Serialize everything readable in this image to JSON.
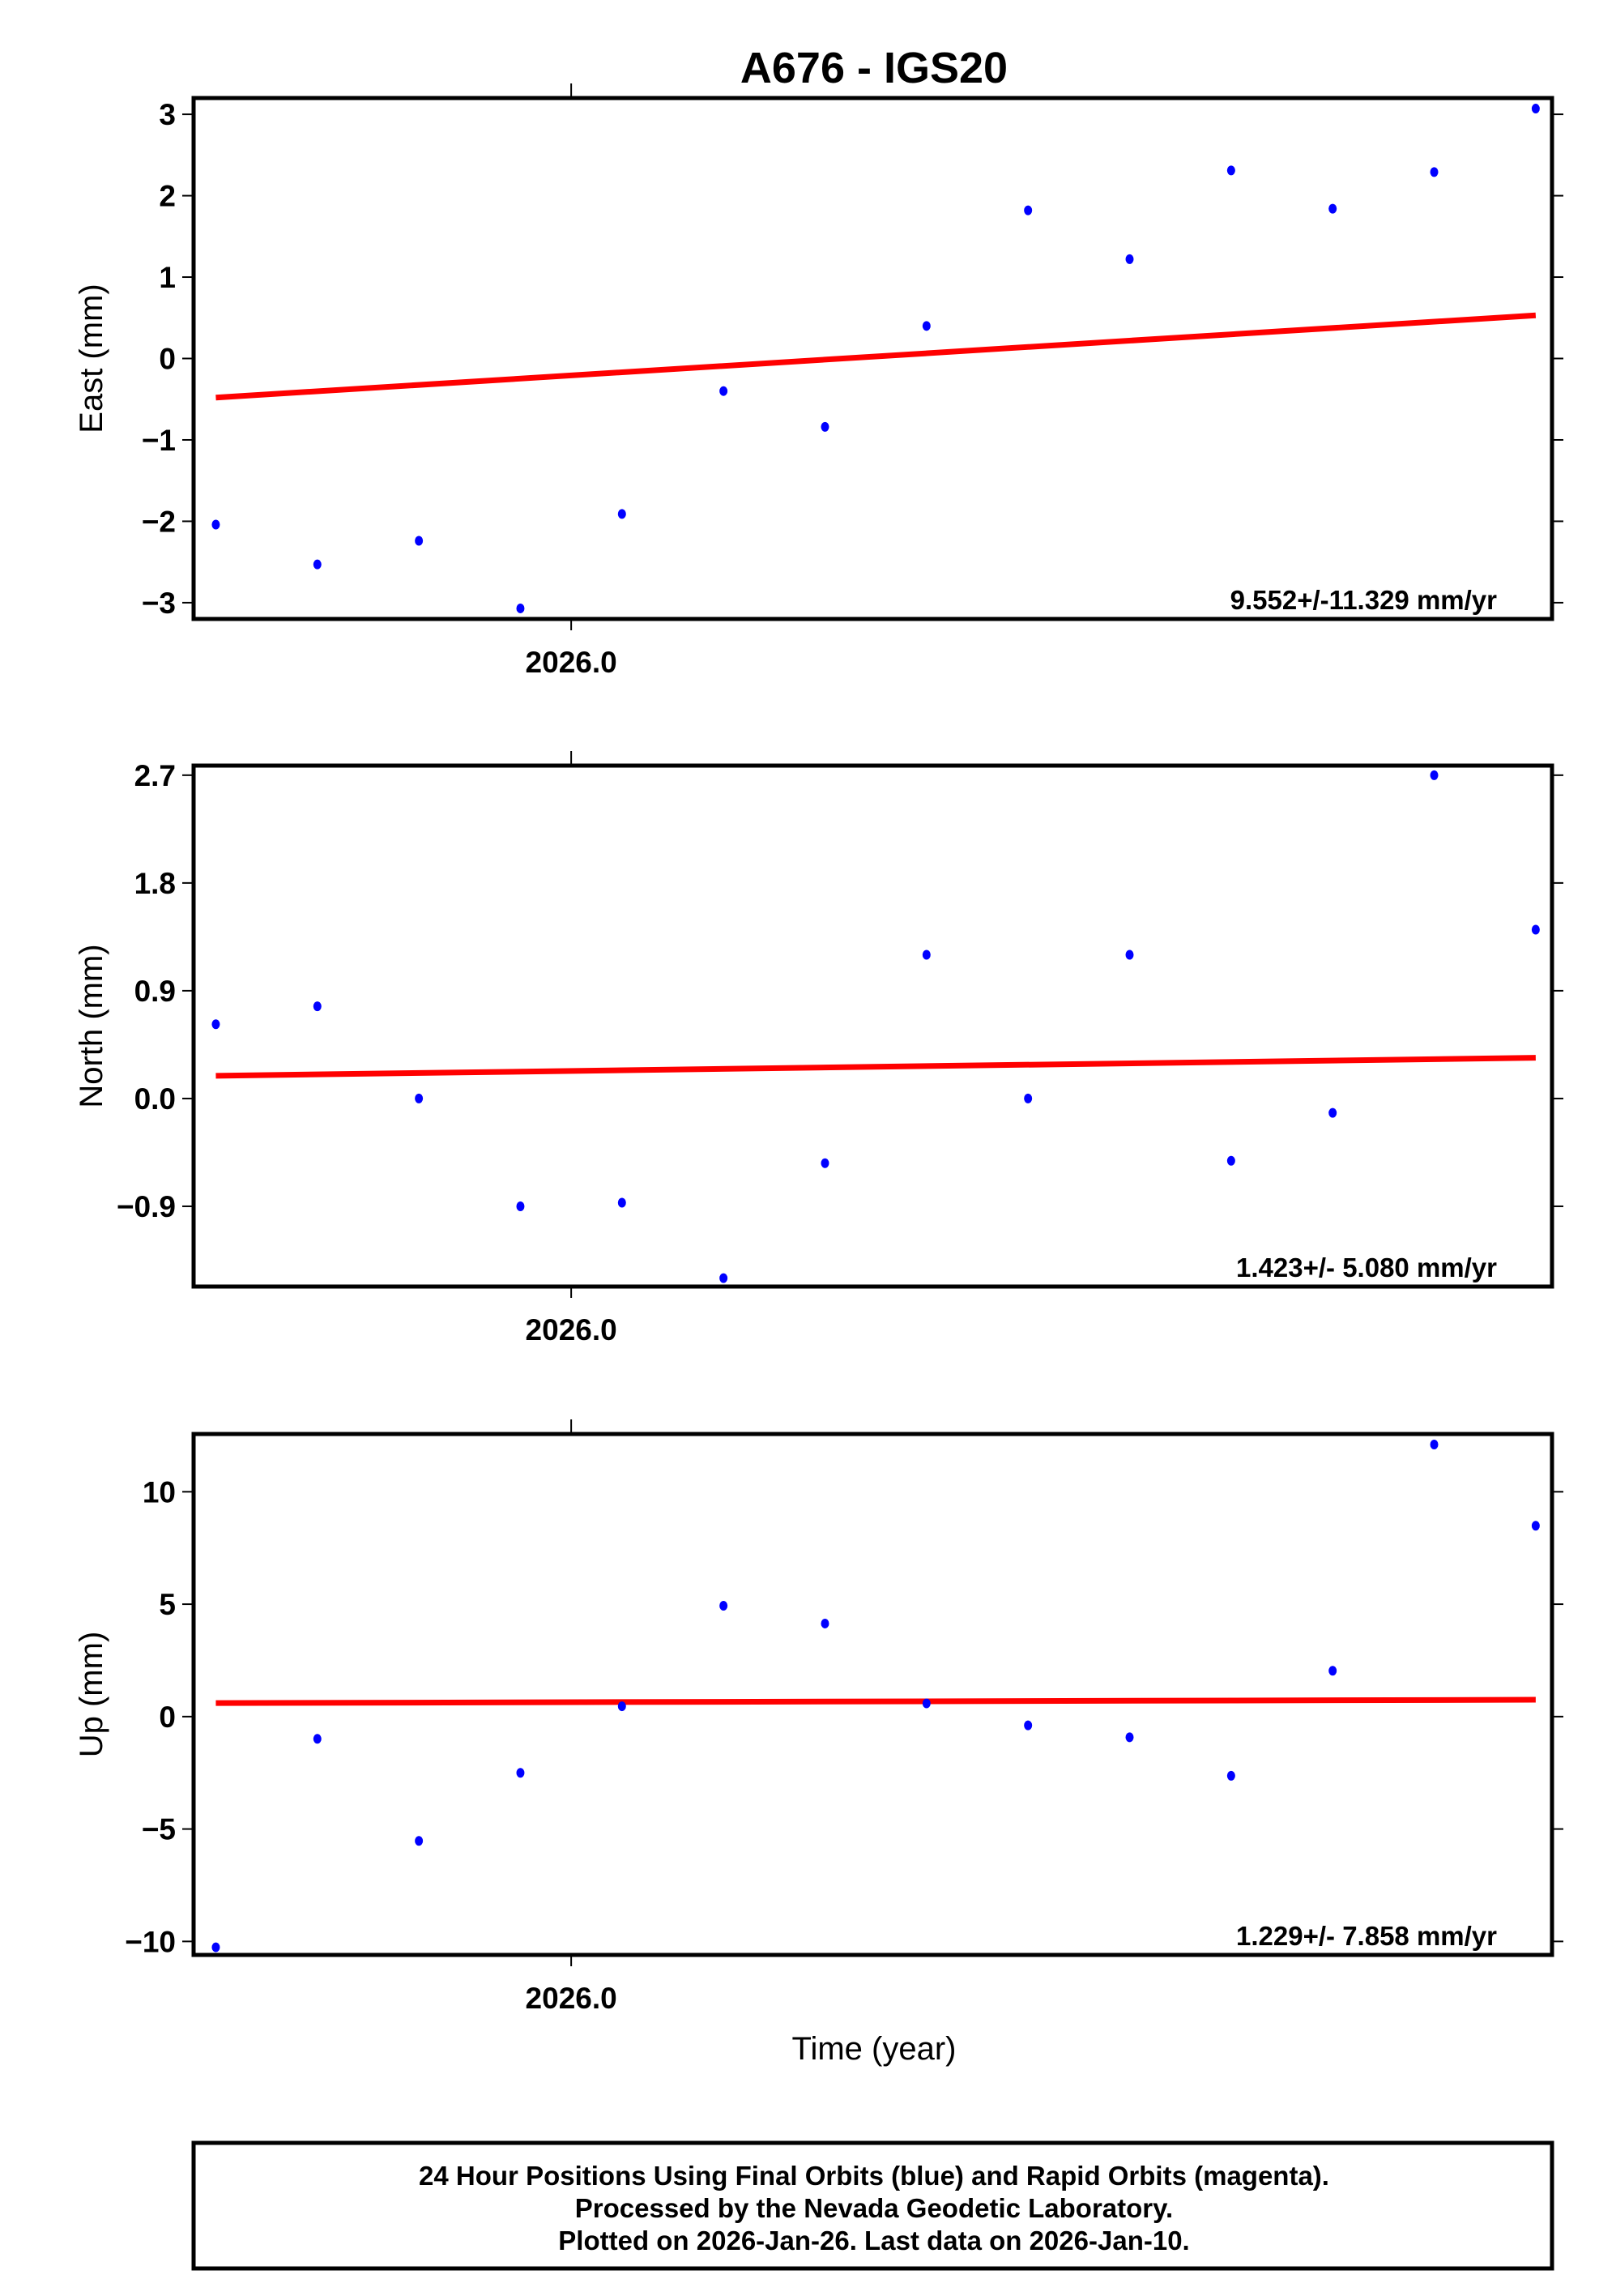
{
  "title": "A676 - IGS20",
  "xlabel": "Time (year)",
  "footer": {
    "lines": [
      "24 Hour Positions Using Final Orbits (blue) and Rapid Orbits (magenta).",
      "Processed by the Nevada Geodetic Laboratory.",
      "Plotted on 2026-Jan-26. Last data on 2026-Jan-10."
    ]
  },
  "colors": {
    "points": "#0000ff",
    "trend": "#ff0000",
    "frame": "#000000"
  },
  "chart_data": [
    {
      "type": "scatter",
      "ylabel": "East (mm)",
      "x": [
        2025.99041,
        2025.99315,
        2025.99589,
        2025.99863,
        2026.00137,
        2026.00411,
        2026.00685,
        2026.00959,
        2026.01233,
        2026.01507,
        2026.01781,
        2026.02055,
        2026.02329,
        2026.02603
      ],
      "values": [
        -2.04,
        -2.53,
        -2.24,
        -3.07,
        -1.91,
        -0.4,
        -0.84,
        0.4,
        1.82,
        1.22,
        2.31,
        1.84,
        2.29,
        3.07
      ],
      "trend": {
        "start": -0.48,
        "end": 0.53
      },
      "rate_label": "9.552+/-11.329 mm/yr",
      "xlim": [
        2025.98981,
        2026.02647
      ],
      "ylim": [
        -3.2,
        3.2
      ],
      "yticks": [
        3,
        2,
        1,
        0,
        -1,
        -2,
        -3
      ],
      "ytick_labels": [
        "3",
        "2",
        "1",
        "0",
        "−1",
        "−2",
        "−3"
      ],
      "xticks": [
        2026.0
      ],
      "xtick_labels": [
        "2026.0"
      ]
    },
    {
      "type": "scatter",
      "ylabel": "North (mm)",
      "x": [
        2025.99041,
        2025.99315,
        2025.99589,
        2025.99863,
        2026.00137,
        2026.00411,
        2026.00685,
        2026.00959,
        2026.01233,
        2026.01507,
        2026.01781,
        2026.02055,
        2026.02329,
        2026.02603
      ],
      "values": [
        0.62,
        0.77,
        0.0,
        -0.9,
        -0.87,
        -1.5,
        -0.54,
        1.2,
        0.0,
        1.2,
        -0.52,
        -0.12,
        2.7,
        1.41
      ],
      "trend": {
        "start": 0.19,
        "end": 0.34
      },
      "rate_label": "1.423+/- 5.080 mm/yr",
      "xlim": [
        2025.98981,
        2026.02647
      ],
      "ylim": [
        -1.57,
        2.78
      ],
      "yticks": [
        2.7,
        1.8,
        0.9,
        0,
        -0.9
      ],
      "ytick_labels": [
        "2.7",
        "1.8",
        "0.9",
        "0.0",
        "−0.9"
      ],
      "xticks": [
        2026.0
      ],
      "xtick_labels": [
        "2026.0"
      ]
    },
    {
      "type": "scatter",
      "ylabel": "Up (mm)",
      "x": [
        2025.99041,
        2025.99315,
        2025.99589,
        2025.99863,
        2026.00137,
        2026.00411,
        2026.00685,
        2026.00959,
        2026.01233,
        2026.01507,
        2026.01781,
        2026.02055,
        2026.02329,
        2026.02603
      ],
      "values": [
        -10.26,
        -0.99,
        -5.53,
        -2.5,
        0.46,
        4.93,
        4.14,
        0.59,
        -0.39,
        -0.92,
        -2.63,
        2.04,
        12.1,
        8.49
      ],
      "trend": {
        "start": 0.6,
        "end": 0.75
      },
      "rate_label": "1.229+/- 7.858 mm/yr",
      "xlim": [
        2025.98981,
        2026.02647
      ],
      "ylim": [
        -10.6,
        12.57
      ],
      "yticks": [
        10,
        5,
        0,
        -5,
        -10
      ],
      "ytick_labels": [
        "10",
        "5",
        "0",
        "−5",
        "−10"
      ],
      "xticks": [
        2026.0
      ],
      "xtick_labels": [
        "2026.0"
      ]
    }
  ]
}
